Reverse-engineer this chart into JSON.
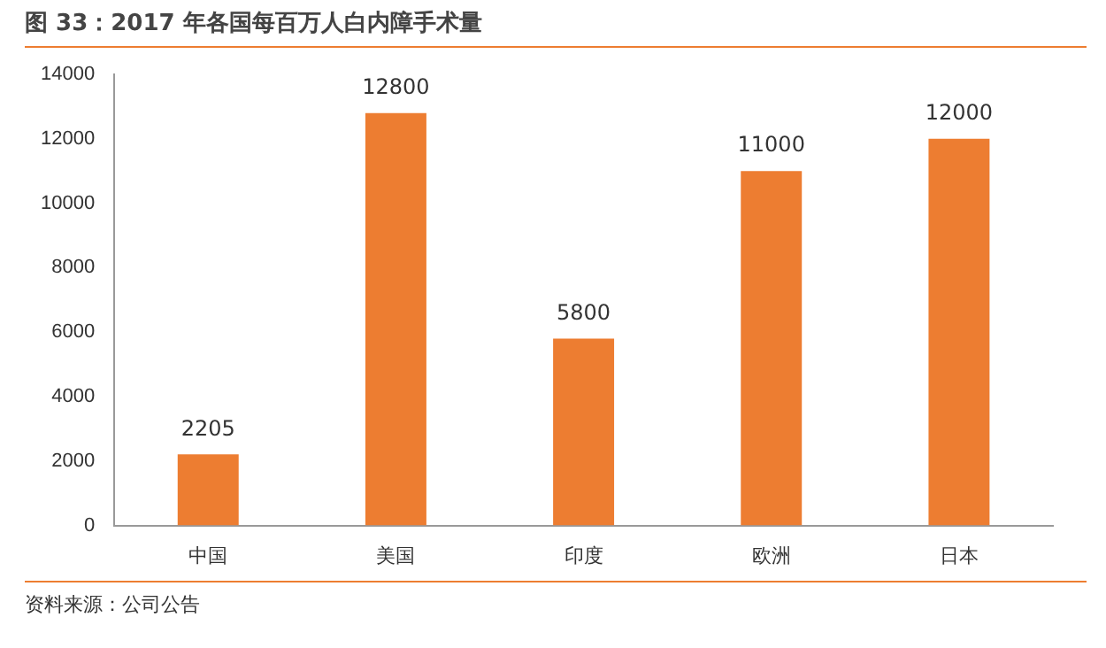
{
  "chart_data": {
    "type": "bar",
    "title": "图 33：2017 年各国每百万人白内障手术量",
    "categories": [
      "中国",
      "美国",
      "印度",
      "欧洲",
      "日本"
    ],
    "values": [
      2205,
      12800,
      5800,
      11000,
      12000
    ],
    "color": "#ed7d31",
    "ylim": [
      0,
      14000
    ],
    "yticks": [
      0,
      2000,
      4000,
      6000,
      8000,
      10000,
      12000,
      14000
    ],
    "grid": false,
    "legend": false,
    "data_labels": true,
    "annotations": [
      "资料来源：公司公告"
    ]
  }
}
